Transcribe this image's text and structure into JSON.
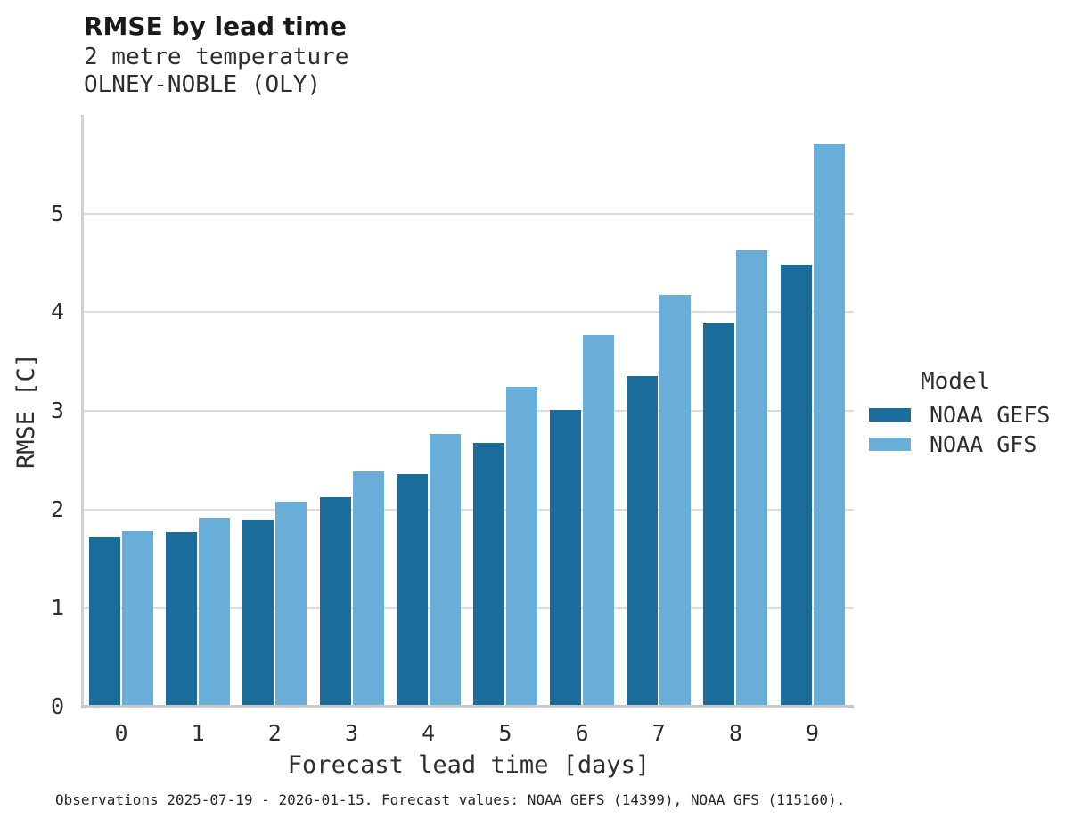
{
  "header": {
    "title": "RMSE by lead time",
    "subtitle1": "2 metre temperature",
    "subtitle2": "OLNEY-NOBLE (OLY)"
  },
  "chart_data": {
    "type": "bar",
    "title": "RMSE by lead time",
    "subtitle": [
      "2 metre temperature",
      "OLNEY-NOBLE (OLY)"
    ],
    "categories": [
      "0",
      "1",
      "2",
      "3",
      "4",
      "5",
      "6",
      "7",
      "8",
      "9"
    ],
    "series": [
      {
        "name": "NOAA GEFS",
        "color": "#1a6c9b",
        "values": [
          1.7,
          1.75,
          1.88,
          2.11,
          2.34,
          2.66,
          2.99,
          3.33,
          3.87,
          4.46
        ]
      },
      {
        "name": "NOAA GFS",
        "color": "#68aed8",
        "values": [
          1.76,
          1.9,
          2.06,
          2.37,
          2.75,
          3.23,
          3.75,
          4.16,
          4.61,
          5.68
        ]
      }
    ],
    "xlabel": "Forecast lead time [days]",
    "ylabel": "RMSE [C]",
    "ylim": [
      0,
      6
    ],
    "yticks": [
      "0",
      "1",
      "2",
      "3",
      "4",
      "5"
    ],
    "grid": "horizontal",
    "legend_title": "Model",
    "legend_position": "right",
    "colors": {
      "gridline": "#dcdcdc",
      "axis_line": "#cccccc",
      "text": "#2e2e2e"
    }
  },
  "caption": "Observations 2025-07-19 - 2026-01-15. Forecast values: NOAA GEFS (14399), NOAA GFS (115160)."
}
